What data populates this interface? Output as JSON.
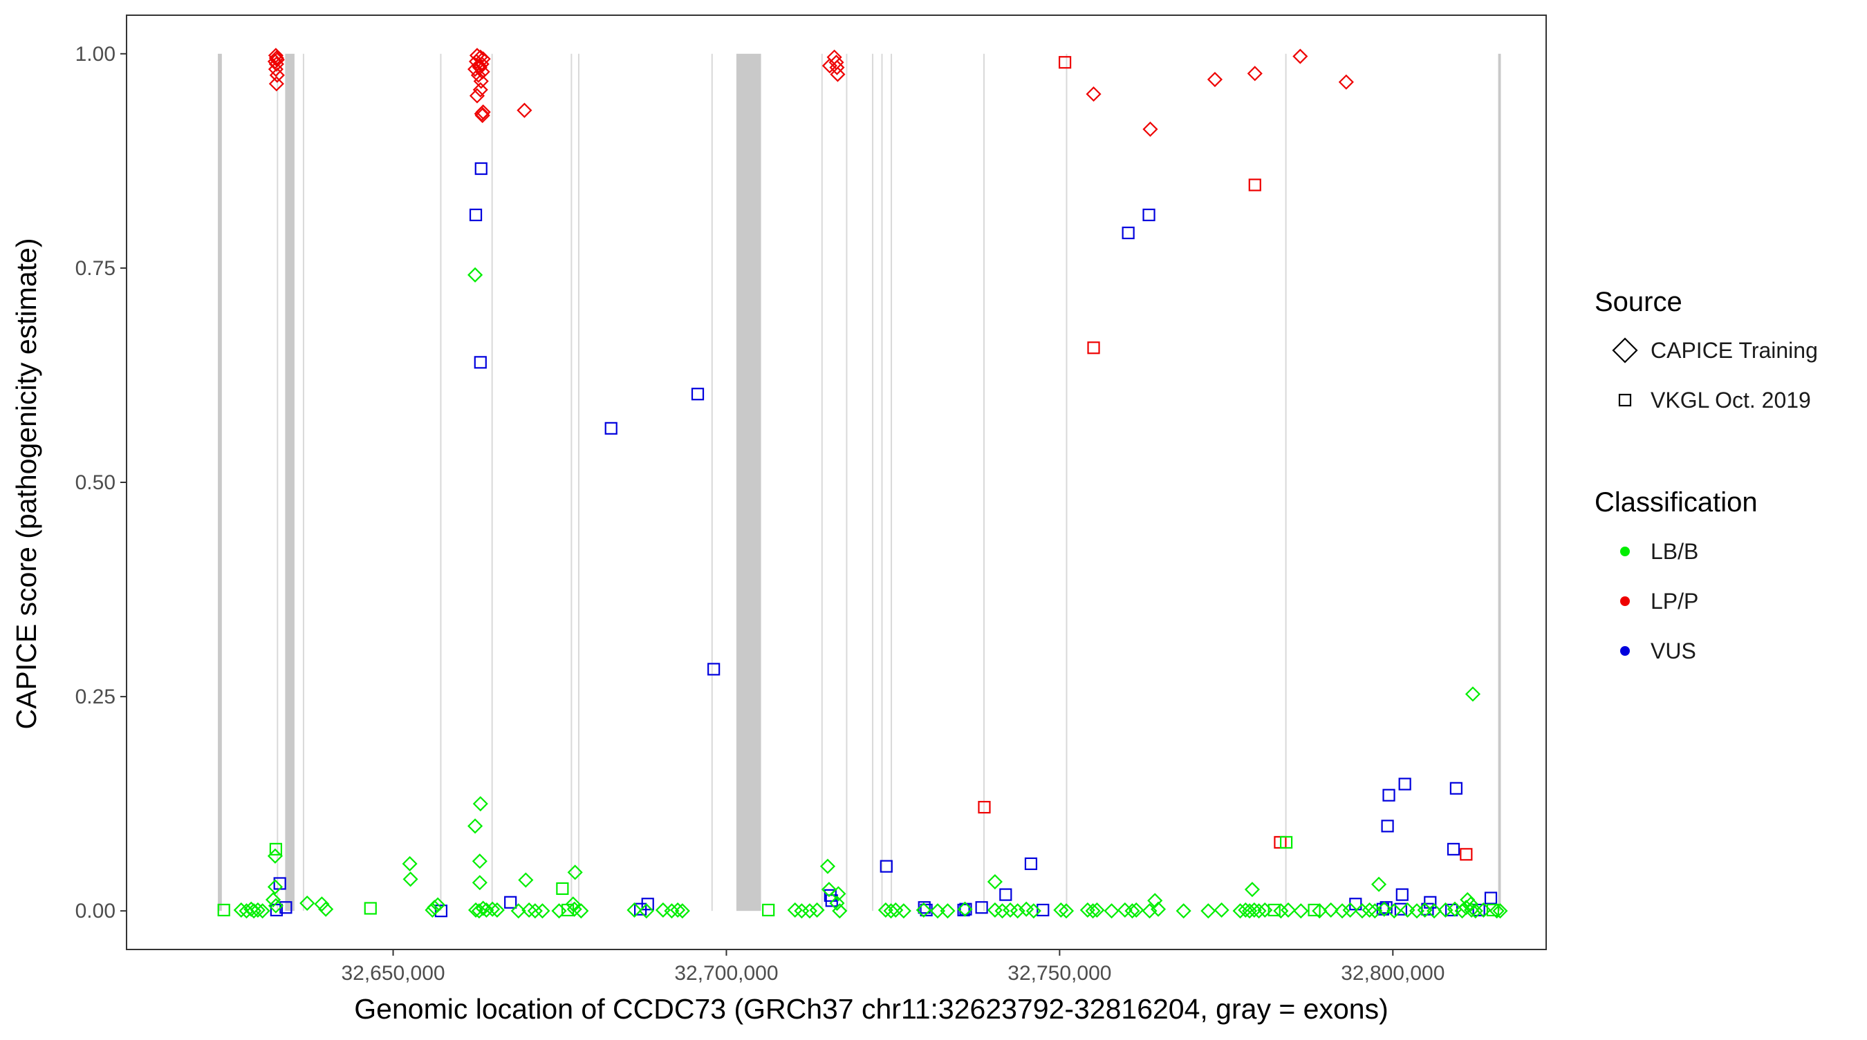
{
  "chart_data": {
    "type": "scatter",
    "title": "",
    "xlabel": "Genomic location of CCDC73 (GRCh37 chr11:32623792-32816204, gray = exons)",
    "ylabel": "CAPICE score (pathogenicity estimate)",
    "xlim": [
      32610000,
      32823000
    ],
    "ylim": [
      -0.045,
      1.045
    ],
    "x_ticks": [
      32650000,
      32700000,
      32750000,
      32800000
    ],
    "x_tick_labels": [
      "32,650,000",
      "32,700,000",
      "32,750,000",
      "32,800,000"
    ],
    "y_ticks": [
      0,
      0.25,
      0.5,
      0.75,
      1
    ],
    "y_tick_labels": [
      "0.00",
      "0.25",
      "0.50",
      "0.75",
      "1.00"
    ],
    "exons": [
      [
        32623700,
        32624300
      ],
      [
        32632600,
        32632700
      ],
      [
        32633800,
        32635200
      ],
      [
        32636500,
        32636600
      ],
      [
        32657100,
        32657200
      ],
      [
        32664800,
        32664900
      ],
      [
        32676700,
        32676800
      ],
      [
        32677800,
        32677900
      ],
      [
        32697800,
        32697900
      ],
      [
        32701500,
        32705200
      ],
      [
        32714300,
        32714400
      ],
      [
        32718000,
        32718100
      ],
      [
        32721900,
        32722000
      ],
      [
        32723300,
        32723400
      ],
      [
        32724700,
        32724800
      ],
      [
        32738600,
        32738700
      ],
      [
        32751000,
        32751100
      ],
      [
        32783900,
        32784000
      ],
      [
        32815800,
        32816204
      ]
    ],
    "legend": {
      "source_title": "Source",
      "source_items": [
        {
          "label": "CAPICE Training",
          "shape": "diamond"
        },
        {
          "label": "VKGL Oct. 2019",
          "shape": "square"
        }
      ],
      "class_title": "Classification",
      "class_items": [
        {
          "label": "LB/B",
          "color": "#00ee00"
        },
        {
          "label": "LP/P",
          "color": "#ee0000"
        },
        {
          "label": "VUS",
          "color": "#0000dd"
        }
      ]
    },
    "series": [
      {
        "name": "CAPICE Training - LP/P",
        "source": "CAPICE Training",
        "classification": "LP/P",
        "points": [
          [
            32632400,
            0.998
          ],
          [
            32632500,
            0.995
          ],
          [
            32632600,
            0.993
          ],
          [
            32632300,
            0.991
          ],
          [
            32632500,
            0.988
          ],
          [
            32632400,
            0.982
          ],
          [
            32632600,
            0.975
          ],
          [
            32632500,
            0.965
          ],
          [
            32662600,
            0.998
          ],
          [
            32663100,
            0.996
          ],
          [
            32663500,
            0.994
          ],
          [
            32662500,
            0.991
          ],
          [
            32663300,
            0.988
          ],
          [
            32662900,
            0.986
          ],
          [
            32663000,
            0.984
          ],
          [
            32662300,
            0.982
          ],
          [
            32663400,
            0.979
          ],
          [
            32662800,
            0.975
          ],
          [
            32663200,
            0.968
          ],
          [
            32663100,
            0.958
          ],
          [
            32662600,
            0.951
          ],
          [
            32663300,
            0.93
          ],
          [
            32663400,
            0.928
          ],
          [
            32663500,
            0.932
          ],
          [
            32669700,
            0.934
          ],
          [
            32715500,
            0.986
          ],
          [
            32716200,
            0.996
          ],
          [
            32716500,
            0.99
          ],
          [
            32716600,
            0.984
          ],
          [
            32716700,
            0.976
          ],
          [
            32755100,
            0.953
          ],
          [
            32763600,
            0.912
          ],
          [
            32773300,
            0.97
          ],
          [
            32779300,
            0.977
          ],
          [
            32786100,
            0.997
          ],
          [
            32793000,
            0.967
          ]
        ]
      },
      {
        "name": "VKGL Oct. 2019 - LP/P",
        "source": "VKGL Oct. 2019",
        "classification": "LP/P",
        "points": [
          [
            32750800,
            0.99
          ],
          [
            32755100,
            0.657
          ],
          [
            32779300,
            0.847
          ],
          [
            32738700,
            0.121
          ],
          [
            32783100,
            0.08
          ],
          [
            32811000,
            0.066
          ]
        ]
      },
      {
        "name": "VKGL Oct. 2019 - VUS",
        "source": "VKGL Oct. 2019",
        "classification": "VUS",
        "points": [
          [
            32663200,
            0.866
          ],
          [
            32662400,
            0.812
          ],
          [
            32663100,
            0.64
          ],
          [
            32682700,
            0.563
          ],
          [
            32695700,
            0.603
          ],
          [
            32698100,
            0.282
          ],
          [
            32760300,
            0.791
          ],
          [
            32763400,
            0.812
          ],
          [
            32633000,
            0.032
          ],
          [
            32632500,
            0.001
          ],
          [
            32633900,
            0.004
          ],
          [
            32657200,
            0.0
          ],
          [
            32667600,
            0.01
          ],
          [
            32687100,
            0.002
          ],
          [
            32688200,
            0.008
          ],
          [
            32715600,
            0.018
          ],
          [
            32715800,
            0.012
          ],
          [
            32724000,
            0.052
          ],
          [
            32729700,
            0.004
          ],
          [
            32730000,
            0.001
          ],
          [
            32735600,
            0.001
          ],
          [
            32735900,
            0.002
          ],
          [
            32738300,
            0.004
          ],
          [
            32741900,
            0.019
          ],
          [
            32745700,
            0.055
          ],
          [
            32747500,
            0.001
          ],
          [
            32799400,
            0.135
          ],
          [
            32799200,
            0.099
          ],
          [
            32801800,
            0.148
          ],
          [
            32809500,
            0.143
          ],
          [
            32809100,
            0.072
          ],
          [
            32794400,
            0.008
          ],
          [
            32798500,
            0.002
          ],
          [
            32799000,
            0.004
          ],
          [
            32801400,
            0.019
          ],
          [
            32801200,
            0.002
          ],
          [
            32805600,
            0.01
          ],
          [
            32805200,
            0.002
          ],
          [
            32808800,
            0.001
          ],
          [
            32812900,
            0.001
          ],
          [
            32814700,
            0.015
          ]
        ]
      },
      {
        "name": "CAPICE Training - LB/B",
        "source": "CAPICE Training",
        "classification": "LB/B",
        "points": [
          [
            32662300,
            0.742
          ],
          [
            32812000,
            0.253
          ],
          [
            32663100,
            0.125
          ],
          [
            32662300,
            0.099
          ],
          [
            32663000,
            0.058
          ],
          [
            32652500,
            0.055
          ],
          [
            32652600,
            0.037
          ],
          [
            32663000,
            0.033
          ],
          [
            32632300,
            0.064
          ],
          [
            32632300,
            0.028
          ],
          [
            32632000,
            0.013
          ],
          [
            32632400,
            0.006
          ],
          [
            32669900,
            0.036
          ],
          [
            32677300,
            0.045
          ],
          [
            32677000,
            0.008
          ],
          [
            32677200,
            0.002
          ],
          [
            32715200,
            0.052
          ],
          [
            32715400,
            0.025
          ],
          [
            32716800,
            0.02
          ],
          [
            32716600,
            0.009
          ],
          [
            32740300,
            0.034
          ],
          [
            32764300,
            0.012
          ],
          [
            32778900,
            0.025
          ],
          [
            32797900,
            0.031
          ],
          [
            32811200,
            0.013
          ],
          [
            32811700,
            0.008
          ],
          [
            32627200,
            0.001
          ],
          [
            32628000,
            0.0
          ],
          [
            32628700,
            0.002
          ],
          [
            32629100,
            0.0
          ],
          [
            32629700,
            0.001
          ],
          [
            32630400,
            0.0
          ],
          [
            32637100,
            0.009
          ],
          [
            32639300,
            0.008
          ],
          [
            32639900,
            0.002
          ],
          [
            32655900,
            0.001
          ],
          [
            32656200,
            0.004
          ],
          [
            32656700,
            0.007
          ],
          [
            32662400,
            0.001
          ],
          [
            32662900,
            0.0
          ],
          [
            32663500,
            0.003
          ],
          [
            32664000,
            0.001
          ],
          [
            32664900,
            0.002
          ],
          [
            32665600,
            0.001
          ],
          [
            32668800,
            0.0
          ],
          [
            32670400,
            0.001
          ],
          [
            32671300,
            0.0
          ],
          [
            32672400,
            0.0
          ],
          [
            32674900,
            0.0
          ],
          [
            32678200,
            0.0
          ],
          [
            32686200,
            0.001
          ],
          [
            32688000,
            0.0
          ],
          [
            32690500,
            0.001
          ],
          [
            32691800,
            0.0
          ],
          [
            32692700,
            0.001
          ],
          [
            32693400,
            0.0
          ],
          [
            32710300,
            0.001
          ],
          [
            32711300,
            0.0
          ],
          [
            32712500,
            0.0
          ],
          [
            32713600,
            0.001
          ],
          [
            32717000,
            0.0
          ],
          [
            32723900,
            0.001
          ],
          [
            32724700,
            0.0
          ],
          [
            32725400,
            0.001
          ],
          [
            32726600,
            0.0
          ],
          [
            32729600,
            0.001
          ],
          [
            32731700,
            0.0
          ],
          [
            32733200,
            0.0
          ],
          [
            32735800,
            0.002
          ],
          [
            32740300,
            0.001
          ],
          [
            32741400,
            0.0
          ],
          [
            32742600,
            0.001
          ],
          [
            32743700,
            0.0
          ],
          [
            32745000,
            0.002
          ],
          [
            32746100,
            0.0
          ],
          [
            32750200,
            0.001
          ],
          [
            32751000,
            0.0
          ],
          [
            32754200,
            0.001
          ],
          [
            32755000,
            0.0
          ],
          [
            32755600,
            0.001
          ],
          [
            32757800,
            0.0
          ],
          [
            32759800,
            0.001
          ],
          [
            32760900,
            0.0
          ],
          [
            32761500,
            0.001
          ],
          [
            32763500,
            0.0
          ],
          [
            32764800,
            0.002
          ],
          [
            32768600,
            0.0
          ],
          [
            32772300,
            0.0
          ],
          [
            32774300,
            0.001
          ],
          [
            32777100,
            0.0
          ],
          [
            32777900,
            0.001
          ],
          [
            32778500,
            0.0
          ],
          [
            32779200,
            0.001
          ],
          [
            32779900,
            0.0
          ],
          [
            32780800,
            0.001
          ],
          [
            32783200,
            0.0
          ],
          [
            32784300,
            0.001
          ],
          [
            32786200,
            0.0
          ],
          [
            32789000,
            0.0
          ],
          [
            32790700,
            0.001
          ],
          [
            32792400,
            0.0
          ],
          [
            32793600,
            0.001
          ],
          [
            32795400,
            0.0
          ],
          [
            32796500,
            0.001
          ],
          [
            32797300,
            0.0
          ],
          [
            32798700,
            0.002
          ],
          [
            32800200,
            0.0
          ],
          [
            32802200,
            0.001
          ],
          [
            32803600,
            0.0
          ],
          [
            32804800,
            0.001
          ],
          [
            32806200,
            0.0
          ],
          [
            32807900,
            0.001
          ],
          [
            32809300,
            0.002
          ],
          [
            32810400,
            0.0
          ],
          [
            32811000,
            0.004
          ],
          [
            32811800,
            0.001
          ],
          [
            32812400,
            0.0
          ],
          [
            32813600,
            0.001
          ],
          [
            32815600,
            0.0
          ],
          [
            32816100,
            0.0
          ]
        ]
      },
      {
        "name": "VKGL Oct. 2019 - LB/B",
        "source": "VKGL Oct. 2019",
        "classification": "LB/B",
        "points": [
          [
            32632400,
            0.072
          ],
          [
            32675400,
            0.026
          ],
          [
            32784000,
            0.08
          ],
          [
            32624600,
            0.001
          ],
          [
            32646600,
            0.003
          ],
          [
            32676200,
            0.001
          ],
          [
            32706300,
            0.001
          ],
          [
            32782200,
            0.001
          ],
          [
            32788200,
            0.001
          ],
          [
            32815000,
            0.001
          ]
        ]
      }
    ]
  }
}
